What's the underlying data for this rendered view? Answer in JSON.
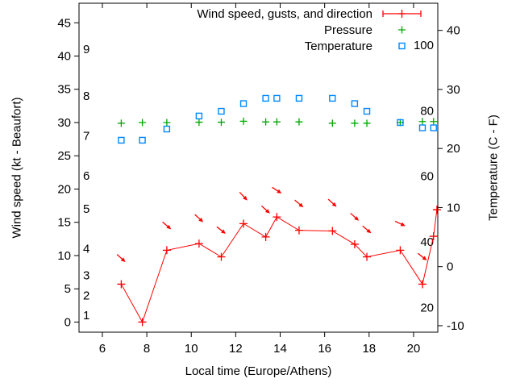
{
  "chart_data": {
    "type": "line",
    "x_axis": {
      "label": "Local time (Europe/Athens)",
      "ticks": [
        6,
        8,
        10,
        12,
        14,
        16,
        18,
        20
      ],
      "range": [
        4.95,
        21.09
      ]
    },
    "left_axis": {
      "label": "Wind speed (kt - Beaufort)",
      "unit": "kt",
      "ticks": [
        0,
        5,
        10,
        15,
        20,
        25,
        30,
        35,
        40,
        45
      ],
      "range": [
        -1.52,
        47.94
      ],
      "inner_scale": {
        "name": "Beaufort",
        "labels": [
          {
            "text": "1",
            "kt": 1
          },
          {
            "text": "2",
            "kt": 4
          },
          {
            "text": "3",
            "kt": 7
          },
          {
            "text": "4",
            "kt": 11
          },
          {
            "text": "5",
            "kt": 17
          },
          {
            "text": "6",
            "kt": 22
          },
          {
            "text": "7",
            "kt": 28
          },
          {
            "text": "8",
            "kt": 34
          },
          {
            "text": "9",
            "kt": 41
          }
        ]
      }
    },
    "right_axis": {
      "label": "Temperature (C - F)",
      "unit": "C",
      "ticks": [
        40,
        30,
        20,
        10,
        0,
        -10
      ],
      "range": [
        -11.1,
        44.6
      ],
      "inner_scale": {
        "name": "Fahrenheit",
        "labels": [
          {
            "text": "100",
            "f": 100
          },
          {
            "text": "80",
            "f": 80
          },
          {
            "text": "60",
            "f": 60
          },
          {
            "text": "40",
            "f": 40
          },
          {
            "text": "20",
            "f": 20
          }
        ]
      }
    },
    "legend": {
      "entries": [
        {
          "label": "Wind speed, gusts, and direction",
          "series": "wind",
          "marker": "errorbar-line"
        },
        {
          "label": "Pressure",
          "series": "pressure",
          "marker": "plus"
        },
        {
          "label": "Temperature",
          "series": "temperature",
          "marker": "open-square"
        }
      ]
    },
    "colors": {
      "wind": "#ff0000",
      "pressure": "#00a800",
      "temperature": "#0088ff",
      "axis": "#000000"
    },
    "series": {
      "wind_speed_kt": {
        "marker": "plus",
        "x": [
          6.85,
          7.8,
          8.9,
          10.35,
          11.35,
          12.35,
          13.35,
          13.85,
          14.85,
          16.35,
          17.35,
          17.9,
          19.4,
          20.4,
          20.9,
          21.05
        ],
        "y": [
          5.7,
          0,
          10.8,
          11.8,
          9.8,
          14.8,
          12.8,
          15.8,
          13.8,
          13.7,
          11.7,
          9.8,
          10.8,
          5.7,
          12.9,
          16.9
        ]
      },
      "gusts_with_direction": {
        "marker": "arrow",
        "points": [
          {
            "x": 6.85,
            "kt": 9.6,
            "angle_deg": 42
          },
          {
            "x": 8.9,
            "kt": 14.5,
            "angle_deg": 40
          },
          {
            "x": 10.35,
            "kt": 15.6,
            "angle_deg": 42
          },
          {
            "x": 11.35,
            "kt": 13.8,
            "angle_deg": 38
          },
          {
            "x": 12.35,
            "kt": 18.9,
            "angle_deg": 47
          },
          {
            "x": 13.35,
            "kt": 16.9,
            "angle_deg": 42
          },
          {
            "x": 13.85,
            "kt": 19.8,
            "angle_deg": 33
          },
          {
            "x": 14.85,
            "kt": 17.8,
            "angle_deg": 40
          },
          {
            "x": 16.35,
            "kt": 17.9,
            "angle_deg": 42
          },
          {
            "x": 17.35,
            "kt": 15.8,
            "angle_deg": 42
          },
          {
            "x": 17.9,
            "kt": 13.9,
            "angle_deg": 40
          },
          {
            "x": 19.4,
            "kt": 14.8,
            "angle_deg": 25
          },
          {
            "x": 20.4,
            "kt": 9.8,
            "angle_deg": 38
          }
        ]
      },
      "pressure_inhg": {
        "marker": "plus",
        "plotted_on": "left_axis",
        "x": [
          6.85,
          7.8,
          8.9,
          10.35,
          11.35,
          12.35,
          13.35,
          13.85,
          14.85,
          16.35,
          17.35,
          17.9,
          19.4,
          20.4,
          20.9
        ],
        "y": [
          29.9,
          30.0,
          30.0,
          30.05,
          30.05,
          30.2,
          30.1,
          30.1,
          30.1,
          29.9,
          29.9,
          29.9,
          30.0,
          30.15,
          30.15
        ]
      },
      "temperature_c": {
        "marker": "open-square",
        "plotted_on": "right_axis",
        "x": [
          6.85,
          7.8,
          8.9,
          10.35,
          11.35,
          12.35,
          13.35,
          13.85,
          14.85,
          16.35,
          17.35,
          17.9,
          19.4,
          20.4,
          20.9
        ],
        "y": [
          21.4,
          21.4,
          23.3,
          25.5,
          26.3,
          27.6,
          28.5,
          28.5,
          28.5,
          28.5,
          27.6,
          26.3,
          24.4,
          23.5,
          23.5
        ]
      }
    }
  }
}
